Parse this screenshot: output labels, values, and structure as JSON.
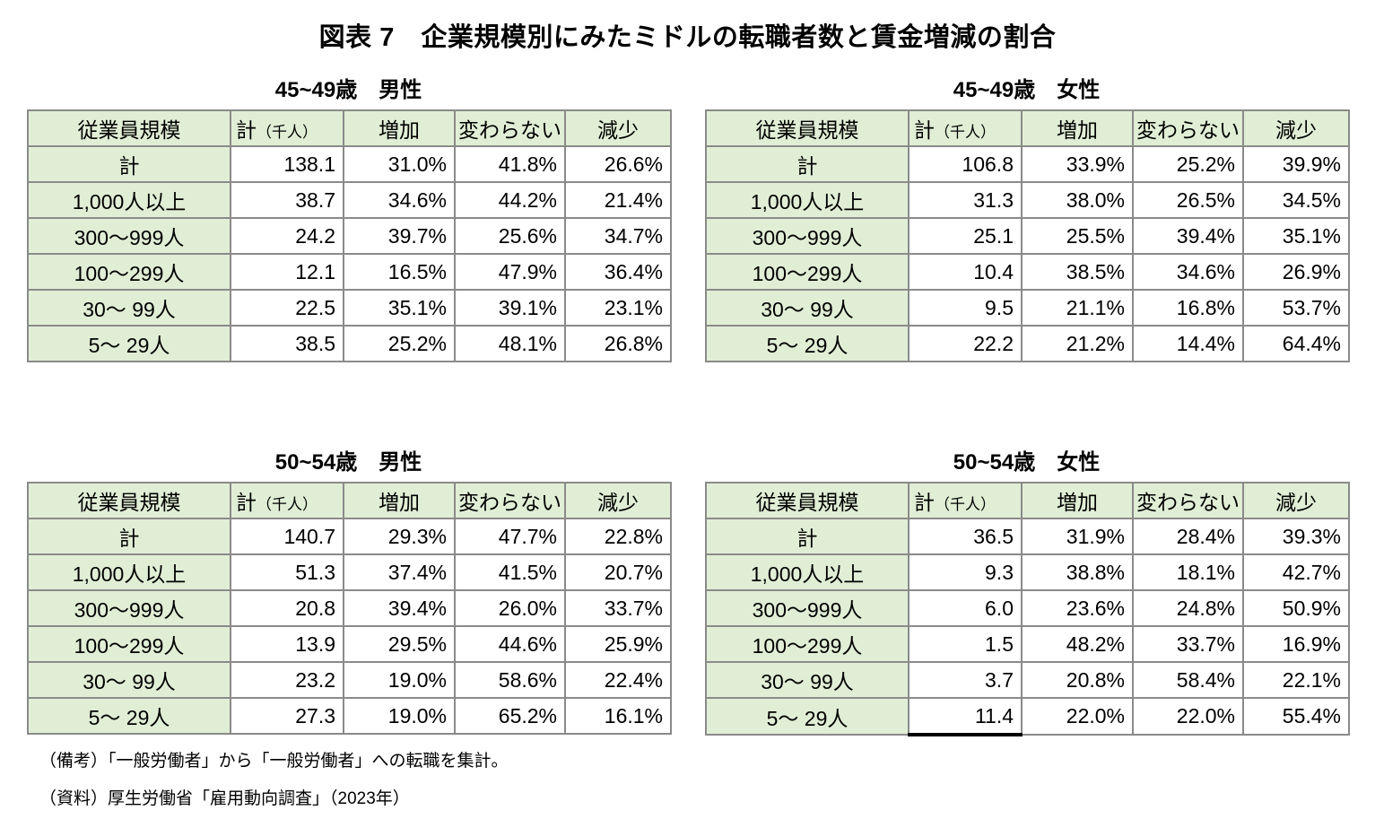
{
  "title": "図表 7　企業規模別にみたミドルの転職者数と賃金増減の割合",
  "column_headers": {
    "size": "従業員規模",
    "total_main": "計",
    "total_unit": "（千人）",
    "increase": "増加",
    "unchanged": "変わらない",
    "decrease": "減少"
  },
  "tables": [
    {
      "title": "45~49歳　男性",
      "rows": [
        {
          "label": "計",
          "total": "138.1",
          "inc": "31.0%",
          "same": "41.8%",
          "dec": "26.6%"
        },
        {
          "label": "1,000人以上",
          "total": "38.7",
          "inc": "34.6%",
          "same": "44.2%",
          "dec": "21.4%"
        },
        {
          "label": "300〜999人",
          "total": "24.2",
          "inc": "39.7%",
          "same": "25.6%",
          "dec": "34.7%"
        },
        {
          "label": "100〜299人",
          "total": "12.1",
          "inc": "16.5%",
          "same": "47.9%",
          "dec": "36.4%"
        },
        {
          "label": "30〜 99人",
          "total": "22.5",
          "inc": "35.1%",
          "same": "39.1%",
          "dec": "23.1%"
        },
        {
          "label": "5〜 29人",
          "total": "38.5",
          "inc": "25.2%",
          "same": "48.1%",
          "dec": "26.8%"
        }
      ]
    },
    {
      "title": "45~49歳　女性",
      "rows": [
        {
          "label": "計",
          "total": "106.8",
          "inc": "33.9%",
          "same": "25.2%",
          "dec": "39.9%"
        },
        {
          "label": "1,000人以上",
          "total": "31.3",
          "inc": "38.0%",
          "same": "26.5%",
          "dec": "34.5%"
        },
        {
          "label": "300〜999人",
          "total": "25.1",
          "inc": "25.5%",
          "same": "39.4%",
          "dec": "35.1%"
        },
        {
          "label": "100〜299人",
          "total": "10.4",
          "inc": "38.5%",
          "same": "34.6%",
          "dec": "26.9%"
        },
        {
          "label": "30〜 99人",
          "total": "9.5",
          "inc": "21.1%",
          "same": "16.8%",
          "dec": "53.7%"
        },
        {
          "label": "5〜 29人",
          "total": "22.2",
          "inc": "21.2%",
          "same": "14.4%",
          "dec": "64.4%"
        }
      ]
    },
    {
      "title": "50~54歳　男性",
      "rows": [
        {
          "label": "計",
          "total": "140.7",
          "inc": "29.3%",
          "same": "47.7%",
          "dec": "22.8%"
        },
        {
          "label": "1,000人以上",
          "total": "51.3",
          "inc": "37.4%",
          "same": "41.5%",
          "dec": "20.7%"
        },
        {
          "label": "300〜999人",
          "total": "20.8",
          "inc": "39.4%",
          "same": "26.0%",
          "dec": "33.7%"
        },
        {
          "label": "100〜299人",
          "total": "13.9",
          "inc": "29.5%",
          "same": "44.6%",
          "dec": "25.9%"
        },
        {
          "label": "30〜 99人",
          "total": "23.2",
          "inc": "19.0%",
          "same": "58.6%",
          "dec": "22.4%"
        },
        {
          "label": "5〜 29人",
          "total": "27.3",
          "inc": "19.0%",
          "same": "65.2%",
          "dec": "16.1%"
        }
      ]
    },
    {
      "title": "50~54歳　女性",
      "rows": [
        {
          "label": "計",
          "total": "36.5",
          "inc": "31.9%",
          "same": "28.4%",
          "dec": "39.3%"
        },
        {
          "label": "1,000人以上",
          "total": "9.3",
          "inc": "38.8%",
          "same": "18.1%",
          "dec": "42.7%"
        },
        {
          "label": "300〜999人",
          "total": "6.0",
          "inc": "23.6%",
          "same": "24.8%",
          "dec": "50.9%"
        },
        {
          "label": "100〜299人",
          "total": "1.5",
          "inc": "48.2%",
          "same": "33.7%",
          "dec": "16.9%"
        },
        {
          "label": "30〜 99人",
          "total": "3.7",
          "inc": "20.8%",
          "same": "58.4%",
          "dec": "22.1%"
        },
        {
          "label": "5〜 29人",
          "total": "11.4",
          "inc": "22.0%",
          "same": "22.0%",
          "dec": "55.4%",
          "underline": true
        }
      ]
    }
  ],
  "notes": {
    "remark": "（備考）「一般労働者」から「一般労働者」への転職を集計。",
    "source": "（資料）厚生労働省「雇用動向調査」（2023年）"
  },
  "colors": {
    "cell_green": "#e0eed5",
    "border_gray": "#8a8a8a",
    "underline_black": "#000000",
    "text_black": "#000000",
    "background_white": "#ffffff"
  }
}
